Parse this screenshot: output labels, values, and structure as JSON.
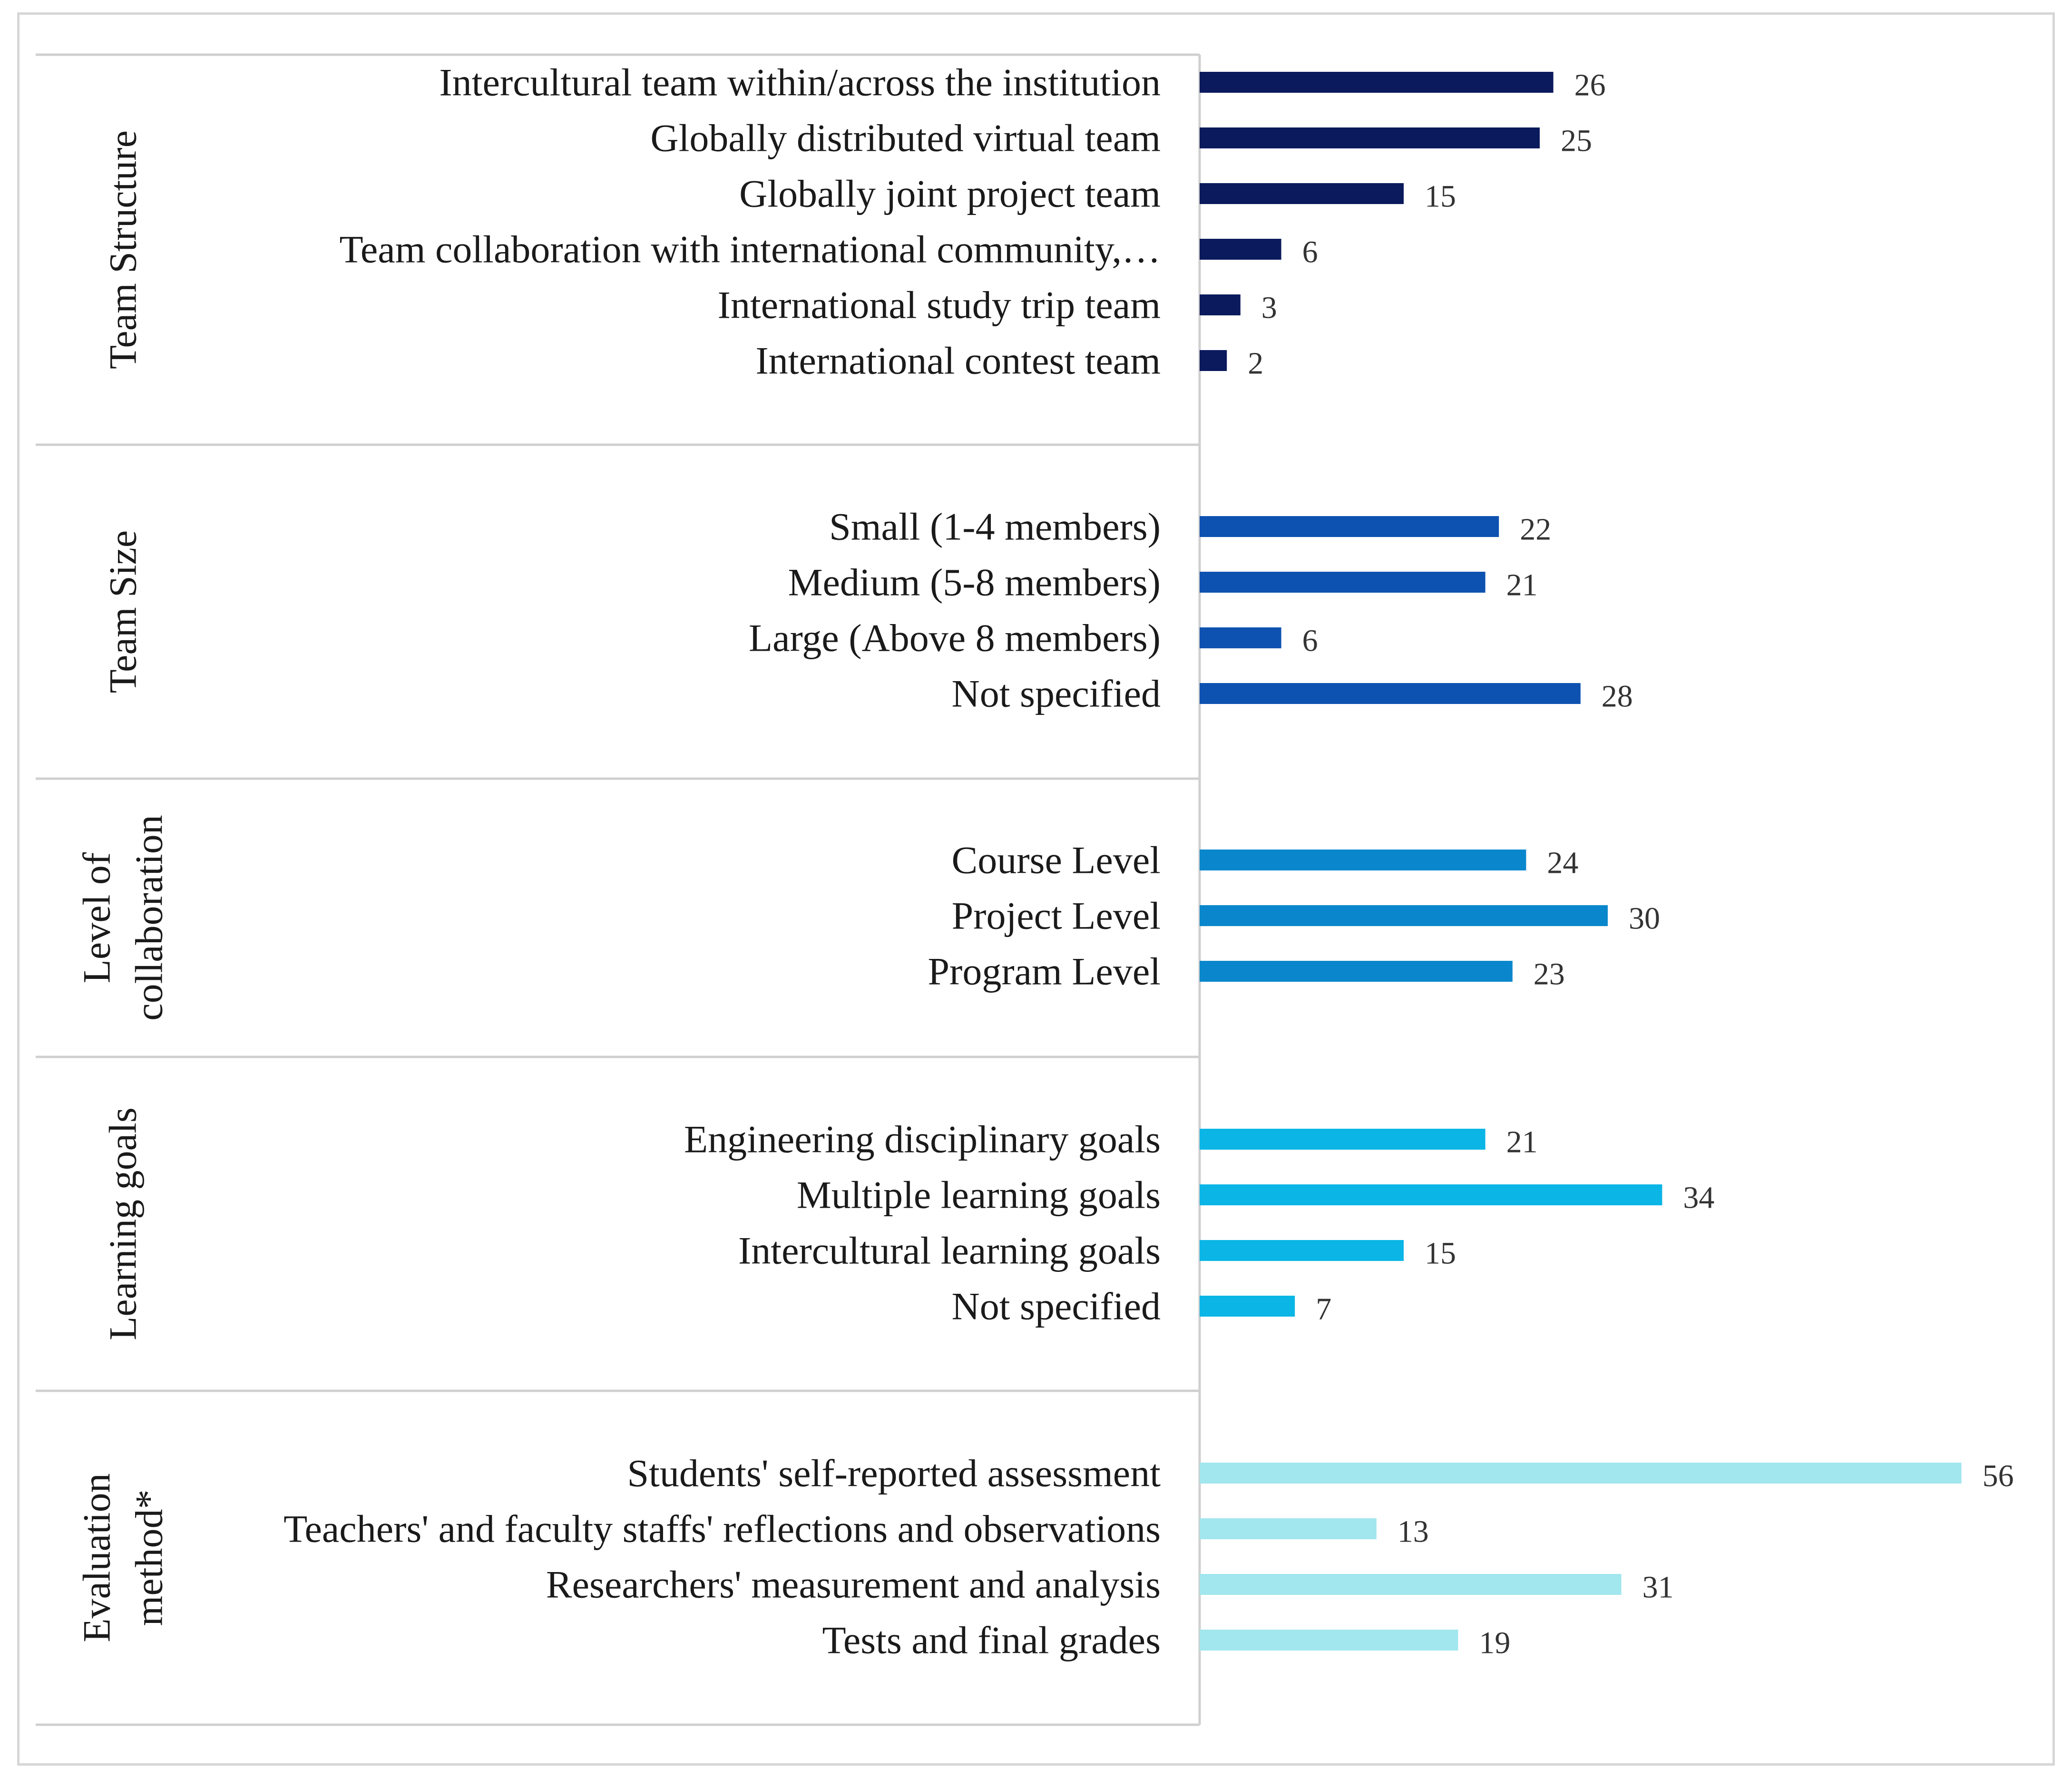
{
  "chart_data": {
    "type": "bar",
    "orientation": "horizontal",
    "groups": [
      {
        "name": "Team Structure",
        "name_lines": [
          "Team Structure"
        ],
        "color": "#0b1a5c",
        "items": [
          {
            "label": "Intercultural team within/across the institution",
            "value": 26
          },
          {
            "label": "Globally distributed virtual team",
            "value": 25
          },
          {
            "label": "Globally joint project team",
            "value": 15
          },
          {
            "label": "Team collaboration with international community,…",
            "value": 6
          },
          {
            "label": "International study trip team",
            "value": 3
          },
          {
            "label": "International contest team",
            "value": 2
          }
        ]
      },
      {
        "name": "Team Size",
        "name_lines": [
          "Team Size"
        ],
        "color": "#0d52b0",
        "items": [
          {
            "label": "Small (1-4 members)",
            "value": 22
          },
          {
            "label": "Medium (5-8 members)",
            "value": 21
          },
          {
            "label": "Large (Above 8 members)",
            "value": 6
          },
          {
            "label": "Not specified",
            "value": 28
          }
        ]
      },
      {
        "name": "Level of collaboration",
        "name_lines": [
          "Level of",
          "collaboration"
        ],
        "color": "#0a87cc",
        "items": [
          {
            "label": "Course Level",
            "value": 24
          },
          {
            "label": "Project Level",
            "value": 30
          },
          {
            "label": "Program Level",
            "value": 23
          }
        ]
      },
      {
        "name": "Learning goals",
        "name_lines": [
          "Learning goals"
        ],
        "color": "#0bb5e6",
        "items": [
          {
            "label": "Engineering disciplinary goals",
            "value": 21
          },
          {
            "label": "Multiple learning goals",
            "value": 34
          },
          {
            "label": "Intercultural learning goals",
            "value": 15
          },
          {
            "label": "Not specified",
            "value": 7
          }
        ]
      },
      {
        "name": "Evaluation method*",
        "name_lines": [
          "Evaluation",
          "method*"
        ],
        "color": "#a2e6ee",
        "items": [
          {
            "label": "Students' self-reported assessment",
            "value": 56
          },
          {
            "label": "Teachers' and faculty staffs' reflections and observations",
            "value": 13
          },
          {
            "label": "Researchers' measurement and analysis",
            "value": 31
          },
          {
            "label": "Tests and final grades",
            "value": 19
          }
        ]
      }
    ],
    "xlim": [
      0,
      56
    ]
  }
}
